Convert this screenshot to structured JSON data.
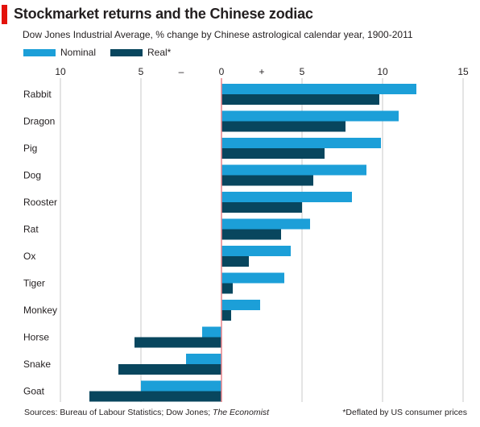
{
  "title": "Stockmarket returns and the Chinese zodiac",
  "subtitle": "Dow Jones Industrial Average, % change by Chinese astrological calendar year, 1900-2011",
  "legend": [
    {
      "label": "Nominal",
      "color": "#1c9fd8"
    },
    {
      "label": "Real*",
      "color": "#08465e"
    }
  ],
  "source": {
    "prefix": "Sources: Bureau of Labour Statistics; Dow Jones; ",
    "publication": "The Economist"
  },
  "footnote": "*Deflated by US consumer prices",
  "axis_colors": {
    "zero_line": "#e8848a",
    "grid": "#c9c9c9"
  },
  "chart_data": {
    "type": "bar",
    "orientation": "horizontal",
    "categories": [
      "Rabbit",
      "Dragon",
      "Pig",
      "Dog",
      "Rooster",
      "Rat",
      "Ox",
      "Tiger",
      "Monkey",
      "Horse",
      "Snake",
      "Goat"
    ],
    "series": [
      {
        "name": "Nominal",
        "color": "#1c9fd8",
        "values": [
          12.1,
          11.0,
          9.9,
          9.0,
          8.1,
          5.5,
          4.3,
          3.9,
          2.4,
          -1.2,
          -2.2,
          -5.0
        ]
      },
      {
        "name": "Real*",
        "color": "#08465e",
        "values": [
          9.8,
          7.7,
          6.4,
          5.7,
          5.0,
          3.7,
          1.7,
          0.7,
          0.6,
          -5.4,
          -6.4,
          -8.2
        ]
      }
    ],
    "xlim": [
      -10,
      15
    ],
    "ticks": [
      {
        "value": -10,
        "label": "10"
      },
      {
        "value": -5,
        "label": "5"
      },
      {
        "value": -2.5,
        "label": "–"
      },
      {
        "value": 0,
        "label": "0"
      },
      {
        "value": 2.5,
        "label": "+"
      },
      {
        "value": 5,
        "label": "5"
      },
      {
        "value": 10,
        "label": "10"
      },
      {
        "value": 15,
        "label": "15"
      }
    ],
    "gridlines": [
      -10,
      -5,
      5,
      10,
      15
    ],
    "tick_position": "top"
  }
}
